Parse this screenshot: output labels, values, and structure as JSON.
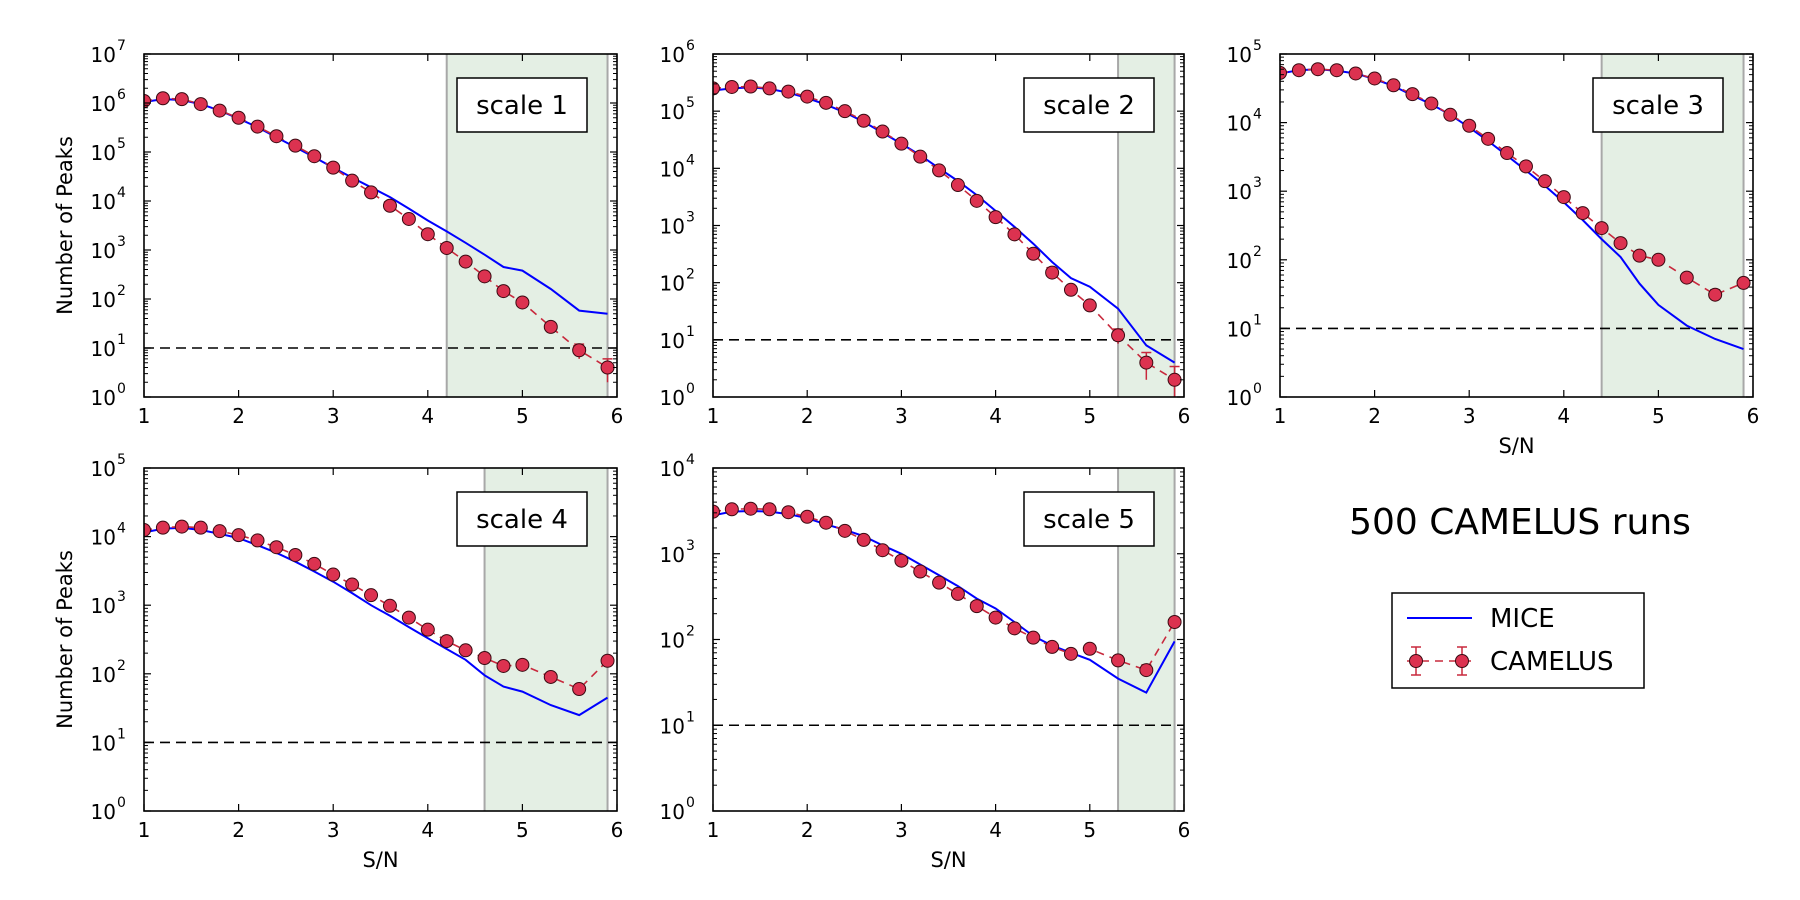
{
  "annotation": "500 CAMELUS runs",
  "legend": {
    "entries": [
      "MICE",
      "CAMELUS"
    ]
  },
  "colors": {
    "mice": "#0000ff",
    "camelus_fill": "#dc3250",
    "camelus_line": "#c8283c",
    "region": "#e4efe4",
    "region_edge": "#a8a8a8",
    "threshold": "#000000"
  },
  "chart_data": [
    {
      "type": "line",
      "label": "scale 1",
      "ylabel": "Number of Peaks",
      "xlabel": "",
      "xlim": [
        1,
        6
      ],
      "ylim": [
        1,
        10000000
      ],
      "yscale": "log",
      "x_ticks": [
        "1",
        "2",
        "3",
        "4",
        "5",
        "6"
      ],
      "y_ticks": [
        {
          "base": "10",
          "exp": "0"
        },
        {
          "base": "10",
          "exp": "1"
        },
        {
          "base": "10",
          "exp": "2"
        },
        {
          "base": "10",
          "exp": "3"
        },
        {
          "base": "10",
          "exp": "4"
        },
        {
          "base": "10",
          "exp": "5"
        },
        {
          "base": "10",
          "exp": "6"
        },
        {
          "base": "10",
          "exp": "7"
        }
      ],
      "threshold": 10,
      "shaded_region": [
        4.2,
        5.9
      ],
      "series": [
        {
          "name": "MICE",
          "x": [
            1.0,
            1.2,
            1.4,
            1.6,
            1.8,
            2.0,
            2.2,
            2.4,
            2.6,
            2.8,
            3.0,
            3.2,
            3.4,
            3.6,
            3.8,
            4.0,
            4.2,
            4.4,
            4.6,
            4.8,
            5.0,
            5.3,
            5.6,
            5.9
          ],
          "y": [
            1050000,
            1200000,
            1150000,
            950000,
            700000,
            480000,
            320000,
            200000,
            125000,
            78000,
            48000,
            30000,
            19000,
            12000,
            7000,
            4000,
            2400,
            1400,
            800,
            450,
            380,
            160,
            58,
            50
          ]
        },
        {
          "name": "CAMELUS",
          "x": [
            1.0,
            1.2,
            1.4,
            1.6,
            1.8,
            2.0,
            2.2,
            2.4,
            2.6,
            2.8,
            3.0,
            3.2,
            3.4,
            3.6,
            3.8,
            4.0,
            4.2,
            4.4,
            4.6,
            4.8,
            5.0,
            5.3,
            5.6,
            5.9
          ],
          "y": [
            1100000,
            1250000,
            1200000,
            950000,
            700000,
            500000,
            330000,
            210000,
            135000,
            82000,
            48000,
            26000,
            15000,
            8000,
            4300,
            2100,
            1100,
            580,
            290,
            145,
            85,
            27,
            9,
            4
          ]
        }
      ]
    },
    {
      "type": "line",
      "label": "scale 2",
      "ylabel": "",
      "xlabel": "",
      "xlim": [
        1,
        6
      ],
      "ylim": [
        1,
        1000000
      ],
      "yscale": "log",
      "x_ticks": [
        "1",
        "2",
        "3",
        "4",
        "5",
        "6"
      ],
      "y_ticks": [
        {
          "base": "10",
          "exp": "0"
        },
        {
          "base": "10",
          "exp": "1"
        },
        {
          "base": "10",
          "exp": "2"
        },
        {
          "base": "10",
          "exp": "3"
        },
        {
          "base": "10",
          "exp": "4"
        },
        {
          "base": "10",
          "exp": "5"
        },
        {
          "base": "10",
          "exp": "6"
        }
      ],
      "threshold": 10,
      "shaded_region": [
        5.3,
        5.9
      ],
      "series": [
        {
          "name": "MICE",
          "x": [
            1.0,
            1.2,
            1.4,
            1.6,
            1.8,
            2.0,
            2.2,
            2.4,
            2.6,
            2.8,
            3.0,
            3.2,
            3.4,
            3.6,
            3.8,
            4.0,
            4.2,
            4.4,
            4.6,
            4.8,
            5.0,
            5.3,
            5.6,
            5.9
          ],
          "y": [
            230000,
            250000,
            260000,
            245000,
            210000,
            170000,
            130000,
            95000,
            65000,
            42000,
            27000,
            17000,
            10000,
            6000,
            3400,
            1800,
            950,
            480,
            230,
            120,
            85,
            35,
            8,
            4
          ]
        },
        {
          "name": "CAMELUS",
          "x": [
            1.0,
            1.2,
            1.4,
            1.6,
            1.8,
            2.0,
            2.2,
            2.4,
            2.6,
            2.8,
            3.0,
            3.2,
            3.4,
            3.6,
            3.8,
            4.0,
            4.2,
            4.4,
            4.6,
            4.8,
            5.0,
            5.3,
            5.6,
            5.9
          ],
          "y": [
            250000,
            265000,
            270000,
            250000,
            220000,
            180000,
            140000,
            100000,
            68000,
            44000,
            27000,
            16000,
            9200,
            5100,
            2700,
            1400,
            700,
            320,
            150,
            75,
            40,
            12,
            4,
            2
          ]
        }
      ]
    },
    {
      "type": "line",
      "label": "scale 3",
      "ylabel": "",
      "xlabel": "S/N",
      "xlim": [
        1,
        6
      ],
      "ylim": [
        1,
        100000
      ],
      "yscale": "log",
      "x_ticks": [
        "1",
        "2",
        "3",
        "4",
        "5",
        "6"
      ],
      "y_ticks": [
        {
          "base": "10",
          "exp": "0"
        },
        {
          "base": "10",
          "exp": "1"
        },
        {
          "base": "10",
          "exp": "2"
        },
        {
          "base": "10",
          "exp": "3"
        },
        {
          "base": "10",
          "exp": "4"
        },
        {
          "base": "10",
          "exp": "5"
        }
      ],
      "threshold": 10,
      "shaded_region": [
        4.4,
        5.9
      ],
      "series": [
        {
          "name": "MICE",
          "x": [
            1.0,
            1.2,
            1.4,
            1.6,
            1.8,
            2.0,
            2.2,
            2.4,
            2.6,
            2.8,
            3.0,
            3.2,
            3.4,
            3.6,
            3.8,
            4.0,
            4.2,
            4.4,
            4.6,
            4.8,
            5.0,
            5.3,
            5.6,
            5.9
          ],
          "y": [
            52000,
            58000,
            60000,
            57000,
            52000,
            43000,
            34000,
            25000,
            18500,
            13000,
            8500,
            5400,
            3300,
            2000,
            1200,
            690,
            380,
            200,
            110,
            45,
            22,
            11,
            7,
            5
          ]
        },
        {
          "name": "CAMELUS",
          "x": [
            1.0,
            1.2,
            1.4,
            1.6,
            1.8,
            2.0,
            2.2,
            2.4,
            2.6,
            2.8,
            3.0,
            3.2,
            3.4,
            3.6,
            3.8,
            4.0,
            4.2,
            4.4,
            4.6,
            4.8,
            5.0,
            5.3,
            5.6,
            5.9
          ],
          "y": [
            53000,
            58000,
            60000,
            58000,
            52000,
            44000,
            35000,
            26000,
            19000,
            13000,
            9000,
            5800,
            3600,
            2300,
            1400,
            820,
            480,
            290,
            175,
            115,
            100,
            55,
            31,
            46
          ]
        }
      ]
    },
    {
      "type": "line",
      "label": "scale 4",
      "ylabel": "Number of Peaks",
      "xlabel": "S/N",
      "xlim": [
        1,
        6
      ],
      "ylim": [
        1,
        100000
      ],
      "yscale": "log",
      "x_ticks": [
        "1",
        "2",
        "3",
        "4",
        "5",
        "6"
      ],
      "y_ticks": [
        {
          "base": "10",
          "exp": "0"
        },
        {
          "base": "10",
          "exp": "1"
        },
        {
          "base": "10",
          "exp": "2"
        },
        {
          "base": "10",
          "exp": "3"
        },
        {
          "base": "10",
          "exp": "4"
        },
        {
          "base": "10",
          "exp": "5"
        }
      ],
      "threshold": 10,
      "shaded_region": [
        4.6,
        5.9
      ],
      "series": [
        {
          "name": "MICE",
          "x": [
            1.0,
            1.2,
            1.4,
            1.6,
            1.8,
            2.0,
            2.2,
            2.4,
            2.6,
            2.8,
            3.0,
            3.2,
            3.4,
            3.6,
            3.8,
            4.0,
            4.2,
            4.4,
            4.6,
            4.8,
            5.0,
            5.3,
            5.6,
            5.9
          ],
          "y": [
            11500,
            13000,
            13500,
            12500,
            11000,
            9500,
            7500,
            5800,
            4300,
            3100,
            2200,
            1500,
            1000,
            700,
            480,
            330,
            230,
            160,
            95,
            65,
            55,
            35,
            25,
            45
          ]
        },
        {
          "name": "CAMELUS",
          "x": [
            1.0,
            1.2,
            1.4,
            1.6,
            1.8,
            2.0,
            2.2,
            2.4,
            2.6,
            2.8,
            3.0,
            3.2,
            3.4,
            3.6,
            3.8,
            4.0,
            4.2,
            4.4,
            4.6,
            4.8,
            5.0,
            5.3,
            5.6,
            5.9
          ],
          "y": [
            12500,
            13500,
            14000,
            13500,
            12000,
            10500,
            8800,
            7000,
            5400,
            4000,
            2800,
            2000,
            1400,
            980,
            660,
            440,
            300,
            220,
            170,
            130,
            135,
            90,
            60,
            155
          ]
        }
      ]
    },
    {
      "type": "line",
      "label": "scale 5",
      "ylabel": "",
      "xlabel": "S/N",
      "xlim": [
        1,
        6
      ],
      "ylim": [
        1,
        10000
      ],
      "yscale": "log",
      "x_ticks": [
        "1",
        "2",
        "3",
        "4",
        "5",
        "6"
      ],
      "y_ticks": [
        {
          "base": "10",
          "exp": "0"
        },
        {
          "base": "10",
          "exp": "1"
        },
        {
          "base": "10",
          "exp": "2"
        },
        {
          "base": "10",
          "exp": "3"
        },
        {
          "base": "10",
          "exp": "4"
        }
      ],
      "threshold": 10,
      "shaded_region": [
        5.3,
        5.9
      ],
      "series": [
        {
          "name": "MICE",
          "x": [
            1.0,
            1.2,
            1.4,
            1.6,
            1.8,
            2.0,
            2.2,
            2.4,
            2.6,
            2.8,
            3.0,
            3.2,
            3.4,
            3.6,
            3.8,
            4.0,
            4.2,
            4.4,
            4.6,
            4.8,
            5.0,
            5.3,
            5.6,
            5.9
          ],
          "y": [
            2800,
            3100,
            3150,
            3100,
            2900,
            2600,
            2200,
            1900,
            1600,
            1250,
            1000,
            750,
            560,
            420,
            300,
            230,
            160,
            110,
            85,
            70,
            58,
            35,
            24,
            95
          ]
        },
        {
          "name": "CAMELUS",
          "x": [
            1.0,
            1.2,
            1.4,
            1.6,
            1.8,
            2.0,
            2.2,
            2.4,
            2.6,
            2.8,
            3.0,
            3.2,
            3.4,
            3.6,
            3.8,
            4.0,
            4.2,
            4.4,
            4.6,
            4.8,
            5.0,
            5.3,
            5.6,
            5.9
          ],
          "y": [
            3100,
            3300,
            3350,
            3300,
            3050,
            2700,
            2300,
            1850,
            1450,
            1100,
            830,
            620,
            460,
            340,
            245,
            180,
            135,
            105,
            82,
            68,
            78,
            57,
            44,
            160
          ]
        }
      ]
    }
  ]
}
